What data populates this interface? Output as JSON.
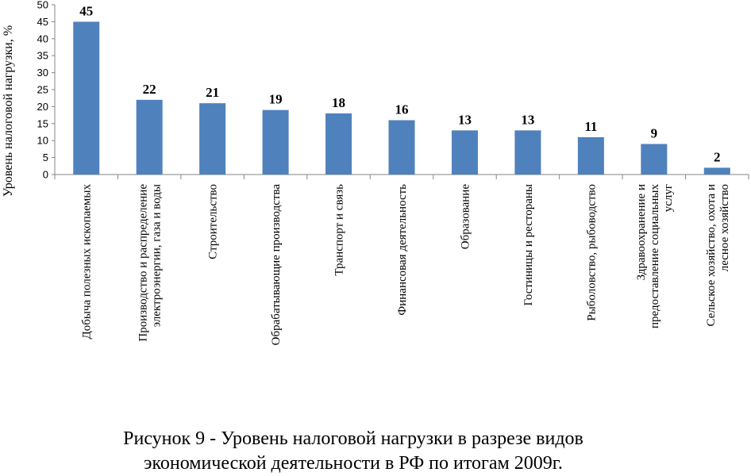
{
  "chart_data": {
    "type": "bar",
    "ylabel": "Уровень налоговой нагрузки, %",
    "ylim": [
      0,
      50
    ],
    "yticks": [
      0,
      5,
      10,
      15,
      20,
      25,
      30,
      35,
      40,
      45,
      50
    ],
    "grid": false,
    "bar_color": "#4f81bd",
    "categories": [
      [
        "Добыча полезных ископаемых"
      ],
      [
        "Производство и распределение",
        "электроэнергии, газа и воды"
      ],
      [
        "Строительство"
      ],
      [
        "Обрабатывающие производства"
      ],
      [
        "Транспорт и связь"
      ],
      [
        "Финансовая деятельность"
      ],
      [
        "Образование"
      ],
      [
        "Гостиницы и рестораны"
      ],
      [
        "Рыболовство, рыбоводство"
      ],
      [
        "Здравоохранение и",
        "предоставление социальных",
        "услуг"
      ],
      [
        "Сельское хозяйство, охота и",
        "лесное хозяйство"
      ]
    ],
    "values": [
      45,
      22,
      21,
      19,
      18,
      16,
      13,
      13,
      11,
      9,
      2
    ]
  },
  "caption": {
    "line1": "Рисунок 9 - Уровень налоговой нагрузки в разрезе видов",
    "line2": "экономической деятельности в РФ по итогам 2009г."
  }
}
